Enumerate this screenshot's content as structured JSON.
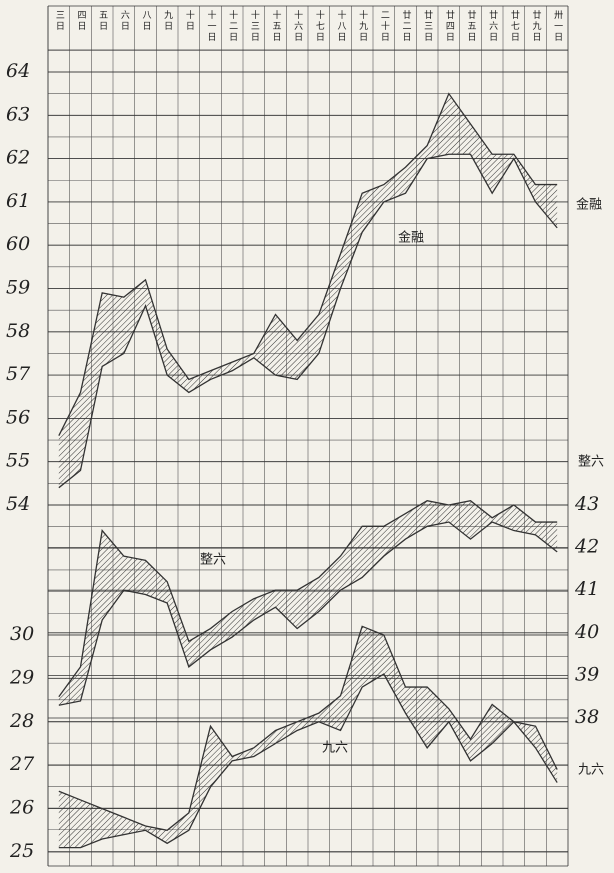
{
  "chart_data": {
    "type": "band",
    "categories": [
      "三日",
      "四日",
      "五日",
      "六日",
      "八日",
      "九日",
      "十日",
      "十一日",
      "十二日",
      "十三日",
      "十五日",
      "十六日",
      "十七日",
      "十八日",
      "十九日",
      "二十日",
      "廿二日",
      "廿三日",
      "廿四日",
      "廿五日",
      "廿六日",
      "廿七日",
      "廿九日",
      "卅一日"
    ],
    "ylim": [
      54,
      64
    ],
    "yticks": [
      54,
      55,
      56,
      57,
      58,
      59,
      60,
      61,
      62,
      63,
      64
    ],
    "y2lim": [
      38,
      43
    ],
    "y2ticks": [
      38,
      39,
      40,
      41,
      42,
      43
    ],
    "y3lim": [
      25,
      30
    ],
    "y3ticks": [
      25,
      26,
      27,
      28,
      29,
      30
    ],
    "grid": true,
    "series": [
      {
        "name": "金融",
        "axis": "y",
        "color": "#333333",
        "high": [
          55.6,
          56.6,
          58.9,
          58.8,
          59.2,
          57.6,
          56.9,
          57.1,
          57.3,
          57.5,
          58.4,
          57.8,
          58.4,
          59.8,
          61.2,
          61.4,
          61.8,
          62.3,
          63.5,
          62.8,
          62.1,
          62.1,
          61.4,
          61.4
        ],
        "low": [
          54.4,
          54.8,
          57.2,
          57.5,
          58.6,
          57.0,
          56.6,
          56.9,
          57.1,
          57.4,
          57.0,
          56.9,
          57.5,
          59.0,
          60.3,
          61.0,
          61.2,
          62.0,
          62.1,
          62.1,
          61.2,
          62.0,
          61.0,
          60.4
        ]
      },
      {
        "name": "整六",
        "axis": "y2",
        "color": "#333333",
        "high": [
          38.5,
          39.2,
          42.4,
          41.8,
          41.7,
          41.2,
          39.8,
          40.1,
          40.5,
          40.8,
          41.0,
          41.0,
          41.3,
          41.8,
          42.5,
          42.5,
          42.8,
          43.1,
          43.0,
          43.1,
          42.7,
          43.0,
          42.6,
          42.6
        ],
        "low": [
          38.3,
          38.4,
          40.3,
          41.0,
          40.9,
          40.7,
          39.2,
          39.6,
          39.9,
          40.3,
          40.6,
          40.1,
          40.5,
          41.0,
          41.3,
          41.8,
          42.2,
          42.5,
          42.6,
          42.2,
          42.6,
          42.4,
          42.3,
          41.9
        ]
      },
      {
        "name": "九六",
        "axis": "y3",
        "color": "#333333",
        "high": [
          26.4,
          26.2,
          26.0,
          25.8,
          25.6,
          25.5,
          25.9,
          27.9,
          27.2,
          27.4,
          27.8,
          28.0,
          28.2,
          28.6,
          30.2,
          30.0,
          28.8,
          28.8,
          28.3,
          27.6,
          28.4,
          28.0,
          27.9,
          26.9
        ],
        "low": [
          25.1,
          25.1,
          25.3,
          25.4,
          25.5,
          25.2,
          25.5,
          26.5,
          27.1,
          27.2,
          27.5,
          27.8,
          28.0,
          27.8,
          28.8,
          29.1,
          28.2,
          27.4,
          28.0,
          27.1,
          27.5,
          28.0,
          27.4,
          26.6
        ]
      }
    ]
  }
}
